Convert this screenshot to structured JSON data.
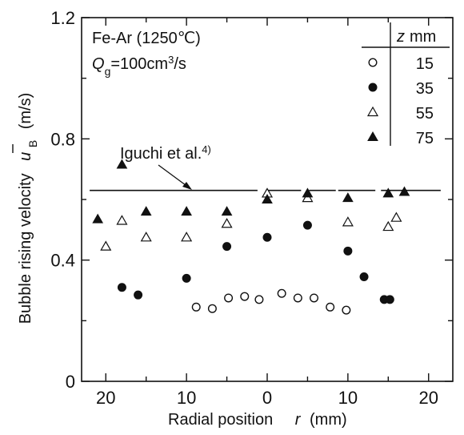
{
  "chart_data": {
    "type": "scatter",
    "xlabel": "Radial position",
    "x_symbol": "r",
    "x_unit": "(mm)",
    "ylabel": "Bubble rising velocity",
    "y_symbol": "u",
    "y_symbol_sub": "B",
    "y_unit": "(m/s)",
    "x_tick_labels": [
      "20",
      "10",
      "0",
      "10",
      "20"
    ],
    "x_tick_values": [
      -20,
      -10,
      0,
      10,
      20
    ],
    "y_ticks": [
      0,
      0.4,
      0.8,
      1.2
    ],
    "y_tick_labels": [
      "0",
      "0.4",
      "0.8",
      "1.2"
    ],
    "xlim": [
      -23,
      23
    ],
    "ylim": [
      0,
      1.2
    ],
    "annotations": {
      "condition1": "Fe-Ar (1250℃)",
      "condition2_prefix": "Q",
      "condition2_sub": "g",
      "condition2_suffix": "=100cm",
      "condition2_sup": "3",
      "condition2_end": "/s",
      "reference_label": "Iguchi et al.",
      "reference_sup": "4)"
    },
    "legend": {
      "header_symbol": "z",
      "header_unit": "mm",
      "placement": "top-right"
    },
    "series": [
      {
        "name": "15",
        "marker": "circle-open",
        "x": [
          -8.8,
          -6.8,
          -4.8,
          -2.8,
          -1,
          1.8,
          3.8,
          5.8,
          7.8,
          9.8
        ],
        "y": [
          0.245,
          0.24,
          0.275,
          0.28,
          0.27,
          0.29,
          0.275,
          0.275,
          0.245,
          0.235
        ]
      },
      {
        "name": "35",
        "marker": "circle-filled",
        "x": [
          -18,
          -16,
          -10,
          -5,
          0,
          5,
          10,
          12,
          14.5,
          15.2
        ],
        "y": [
          0.31,
          0.285,
          0.34,
          0.445,
          0.475,
          0.515,
          0.43,
          0.345,
          0.27,
          0.27
        ]
      },
      {
        "name": "55",
        "marker": "triangle-open",
        "x": [
          -20,
          -18,
          -15,
          -10,
          -5,
          0,
          5,
          10,
          15,
          16
        ],
        "y": [
          0.445,
          0.53,
          0.475,
          0.475,
          0.52,
          0.62,
          0.605,
          0.525,
          0.51,
          0.54
        ]
      },
      {
        "name": "75",
        "marker": "triangle-filled",
        "x": [
          -21,
          -18,
          -15,
          -10,
          -5,
          0,
          5,
          10,
          15,
          17
        ],
        "y": [
          0.535,
          0.715,
          0.56,
          0.56,
          0.56,
          0.6,
          0.62,
          0.605,
          0.62,
          0.625
        ]
      }
    ],
    "reference_line": {
      "y": 0.63,
      "segments": [
        [
          -22,
          -1.2
        ],
        [
          -0.2,
          4.2
        ],
        [
          5.2,
          8.5
        ],
        [
          8.8,
          13.4
        ],
        [
          14.1,
          21.5
        ]
      ]
    }
  }
}
